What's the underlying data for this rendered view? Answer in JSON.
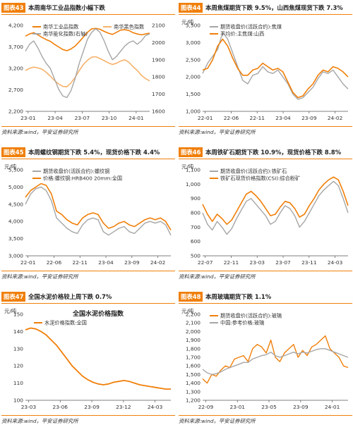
{
  "colors": {
    "orange": "#f07f09",
    "lightorange": "#f6b26b",
    "gray": "#a6a6a6"
  },
  "panels": [
    {
      "id": "p43",
      "tag": "图表43",
      "title": "本周南华工业品指数小幅下跌",
      "source": "资料来源:wind，平安证券研究所",
      "chart": {
        "type": "line",
        "unit_left": "",
        "unit_right": "",
        "x_ticks": [
          "23-01",
          "23-04",
          "23-07",
          "23-10",
          "24-01"
        ],
        "y_ticks": [
          2200,
          2700,
          3200,
          3700,
          4200
        ],
        "ylim": [
          2200,
          4200
        ],
        "y2_ticks": [
          1600,
          1700,
          1800,
          1900,
          2000,
          2100
        ],
        "y2lim": [
          1600,
          2100
        ],
        "legend_pos": "top",
        "series": [
          {
            "name": "南华工业品指数",
            "color": "#f07f09",
            "axis": "left",
            "width": 1.6,
            "values": [
              3950,
              4000,
              4030,
              3980,
              3920,
              3870,
              3830,
              3760,
              3700,
              3640,
              3610,
              3650,
              3720,
              3820,
              3930,
              4040,
              4120,
              4130,
              4110,
              4060,
              4020,
              3990,
              4040,
              4090,
              4100,
              4080,
              4030,
              4000,
              3980,
              4000,
              4020
            ]
          },
          {
            "name": "南华黑色指数",
            "color": "#f6b26b",
            "axis": "left",
            "width": 1.6,
            "values": [
              3150,
              3200,
              3230,
              3210,
              3180,
              3110,
              3020,
              2920,
              2840,
              2780,
              2770,
              2860,
              2990,
              3150,
              3290,
              3390,
              3460,
              3470,
              3430,
              3380,
              3330,
              3290,
              3320,
              3370,
              3400,
              3340,
              3240,
              3150,
              3040,
              2960,
              2910
            ]
          },
          {
            "name": "南华能化指数(右轴)",
            "color": "#a6a6a6",
            "axis": "right",
            "width": 1.4,
            "values": [
              1950,
              1990,
              2010,
              1970,
              1920,
              1880,
              1850,
              1790,
              1730,
              1690,
              1680,
              1720,
              1790,
              1880,
              1950,
              2020,
              2060,
              2080,
              2060,
              2010,
              1950,
              1900,
              1920,
              1950,
              1980,
              2000,
              2010,
              1990,
              2010,
              2040,
              2050
            ]
          }
        ]
      }
    },
    {
      "id": "p44",
      "tag": "图表44",
      "title": "本周焦煤期货下跌 9.5%，山西焦煤现货下跌 7.3%",
      "source": "资料来源:wind，平安证券研究所",
      "chart": {
        "type": "line",
        "unit_left": "元/吨",
        "x_ticks": [
          "22-01",
          "22-06",
          "22-11",
          "23-04",
          "23-09",
          "24-02"
        ],
        "y_ticks": [
          1000,
          1500,
          2000,
          2500,
          3000,
          3500
        ],
        "ylim": [
          1000,
          3500
        ],
        "legend_pos": "top",
        "series": [
          {
            "name": "期货收盘价(活跃合约):焦煤",
            "color": "#a6a6a6",
            "axis": "left",
            "width": 1.4,
            "values": [
              2100,
              2400,
              2600,
              2800,
              3300,
              3100,
              2700,
              2300,
              1900,
              1800,
              2050,
              2100,
              2300,
              2150,
              2100,
              2200,
              2000,
              1800,
              1500,
              1350,
              1400,
              1550,
              1700,
              1950,
              2150,
              2100,
              2200,
              2000,
              1800,
              1650
            ]
          },
          {
            "name": "平均价:主焦煤:山西",
            "color": "#f07f09",
            "axis": "left",
            "width": 1.6,
            "values": [
              2200,
              2250,
              2500,
              2900,
              3100,
              2900,
              2550,
              2250,
              2050,
              2050,
              2200,
              2250,
              2400,
              2300,
              2200,
              2250,
              2150,
              1850,
              1550,
              1400,
              1450,
              1650,
              1800,
              2050,
              2200,
              2150,
              2300,
              2250,
              2150,
              2000
            ]
          }
        ]
      }
    },
    {
      "id": "p45",
      "tag": "图表45",
      "title": "本周螺纹钢期货下跌 5.4%，现货价格下跌 4.4%",
      "source": "资料来源:wind，平安证券研究所",
      "chart": {
        "type": "line",
        "unit_left": "元/吨",
        "x_ticks": [
          "22-01",
          "22-06",
          "22-11",
          "23-04",
          "23-09",
          "24-02"
        ],
        "y_ticks": [
          3000,
          3500,
          4000,
          4500,
          5000,
          5500
        ],
        "ylim": [
          3000,
          5500
        ],
        "legend_pos": "top",
        "series": [
          {
            "name": "期货收盘价(活跃合约):螺纹钢",
            "color": "#a6a6a6",
            "axis": "left",
            "width": 1.4,
            "values": [
              4500,
              4800,
              4950,
              5000,
              4900,
              4600,
              4100,
              3950,
              3800,
              3700,
              3650,
              3900,
              4050,
              4100,
              4050,
              3700,
              3600,
              3700,
              3800,
              3850,
              3700,
              3650,
              3800,
              3950,
              4000,
              3950,
              4000,
              3900,
              3600
            ]
          },
          {
            "name": "价格:螺纹钢:HRB400 20mm:全国",
            "color": "#f07f09",
            "axis": "left",
            "width": 1.6,
            "values": [
              4700,
              4900,
              5000,
              5100,
              5050,
              4800,
              4300,
              4200,
              4050,
              3950,
              3900,
              4100,
              4200,
              4250,
              4200,
              3950,
              3800,
              3850,
              3950,
              4000,
              3900,
              3850,
              3950,
              4050,
              4100,
              4050,
              4100,
              4000,
              3750
            ]
          }
        ]
      }
    },
    {
      "id": "p46",
      "tag": "图表46",
      "title": "本周铁矿石期货下跌 10.9%，现货价格下跌 8.8%",
      "source": "资料来源:wind，平安证券研究所",
      "chart": {
        "type": "line",
        "unit_left": "元/吨",
        "x_ticks": [
          "22-07",
          "22-11",
          "23-03",
          "23-07",
          "23-11",
          "24-03"
        ],
        "y_ticks": [
          500,
          600,
          700,
          800,
          900,
          1000,
          1100
        ],
        "ylim": [
          500,
          1100
        ],
        "legend_pos": "top",
        "series": [
          {
            "name": "期货收盘价(活跃合约):铁矿石",
            "color": "#a6a6a6",
            "axis": "left",
            "width": 1.4,
            "values": [
              800,
              720,
              680,
              740,
              700,
              650,
              690,
              760,
              820,
              880,
              900,
              860,
              820,
              780,
              720,
              740,
              800,
              850,
              830,
              780,
              700,
              740,
              800,
              860,
              920,
              960,
              990,
              1020,
              990,
              900,
              800
            ]
          },
          {
            "name": "铁矿石现货价格指数(CSI):综合粉矿",
            "color": "#f07f09",
            "axis": "left",
            "width": 1.6,
            "values": [
              860,
              790,
              740,
              790,
              760,
              720,
              750,
              810,
              870,
              930,
              950,
              920,
              880,
              830,
              780,
              790,
              840,
              880,
              870,
              830,
              770,
              790,
              850,
              900,
              960,
              1000,
              1030,
              1050,
              1030,
              950,
              850
            ]
          }
        ]
      }
    },
    {
      "id": "p47",
      "tag": "图表47",
      "title": "全国水泥价格较上周下跌 0.7%",
      "source": "资料来源:wind，平安证券研究所",
      "chart": {
        "type": "line",
        "unit_left": "元/吨",
        "inner_title": "全国水泥价格指数",
        "x_ticks": [
          "23-03",
          "23-06",
          "23-09",
          "23-12",
          "24-03"
        ],
        "y_ticks": [
          100,
          110,
          120,
          130,
          140,
          150
        ],
        "ylim": [
          100,
          150
        ],
        "legend_pos": "top",
        "series": [
          {
            "name": "水泥价格指数:全国",
            "color": "#f07f09",
            "axis": "left",
            "width": 1.8,
            "values": [
              141,
              142,
              141.5,
              140,
              138,
              135,
              132,
              128,
              124,
              120,
              117,
              114,
              112,
              110.5,
              109.5,
              109,
              109.5,
              110.5,
              111,
              111.5,
              111,
              110,
              109,
              108.5,
              108,
              107.5,
              107,
              106.5,
              106.5
            ]
          }
        ]
      }
    },
    {
      "id": "p48",
      "tag": "图表48",
      "title": "本周玻璃期货下跌 1.1%",
      "source": "资料来源:wind，平安证券研究所",
      "chart": {
        "type": "line",
        "unit_left": "元/吨",
        "x_ticks": [
          "22-09",
          "23-01",
          "23-05",
          "23-09",
          "24-01"
        ],
        "y_ticks": [
          1200,
          1300,
          1400,
          1500,
          1600,
          1700,
          1800,
          1900,
          2000,
          2100,
          2200
        ],
        "ylim": [
          1200,
          2200
        ],
        "legend_pos": "top",
        "series": [
          {
            "name": "期货收盘价(活跃合约):玻璃",
            "color": "#f07f09",
            "axis": "left",
            "width": 1.4,
            "values": [
              1450,
              1400,
              1500,
              1480,
              1550,
              1600,
              1580,
              1680,
              1700,
              1720,
              1650,
              1800,
              1850,
              1820,
              1750,
              1900,
              1700,
              1650,
              1750,
              1800,
              1850,
              1700,
              1780,
              1720,
              1820,
              1850,
              1900,
              1950,
              1800,
              1750,
              1700,
              1600,
              1580
            ]
          },
          {
            "name": "中国:参考价格:玻璃",
            "color": "#a6a6a6",
            "axis": "left",
            "width": 1.4,
            "values": [
              1560,
              1520,
              1500,
              1510,
              1530,
              1560,
              1580,
              1600,
              1620,
              1640,
              1640,
              1680,
              1700,
              1720,
              1730,
              1760,
              1720,
              1700,
              1720,
              1740,
              1760,
              1740,
              1760,
              1750,
              1770,
              1790,
              1800,
              1800,
              1780,
              1760,
              1740,
              1720,
              1700
            ]
          }
        ]
      }
    }
  ]
}
